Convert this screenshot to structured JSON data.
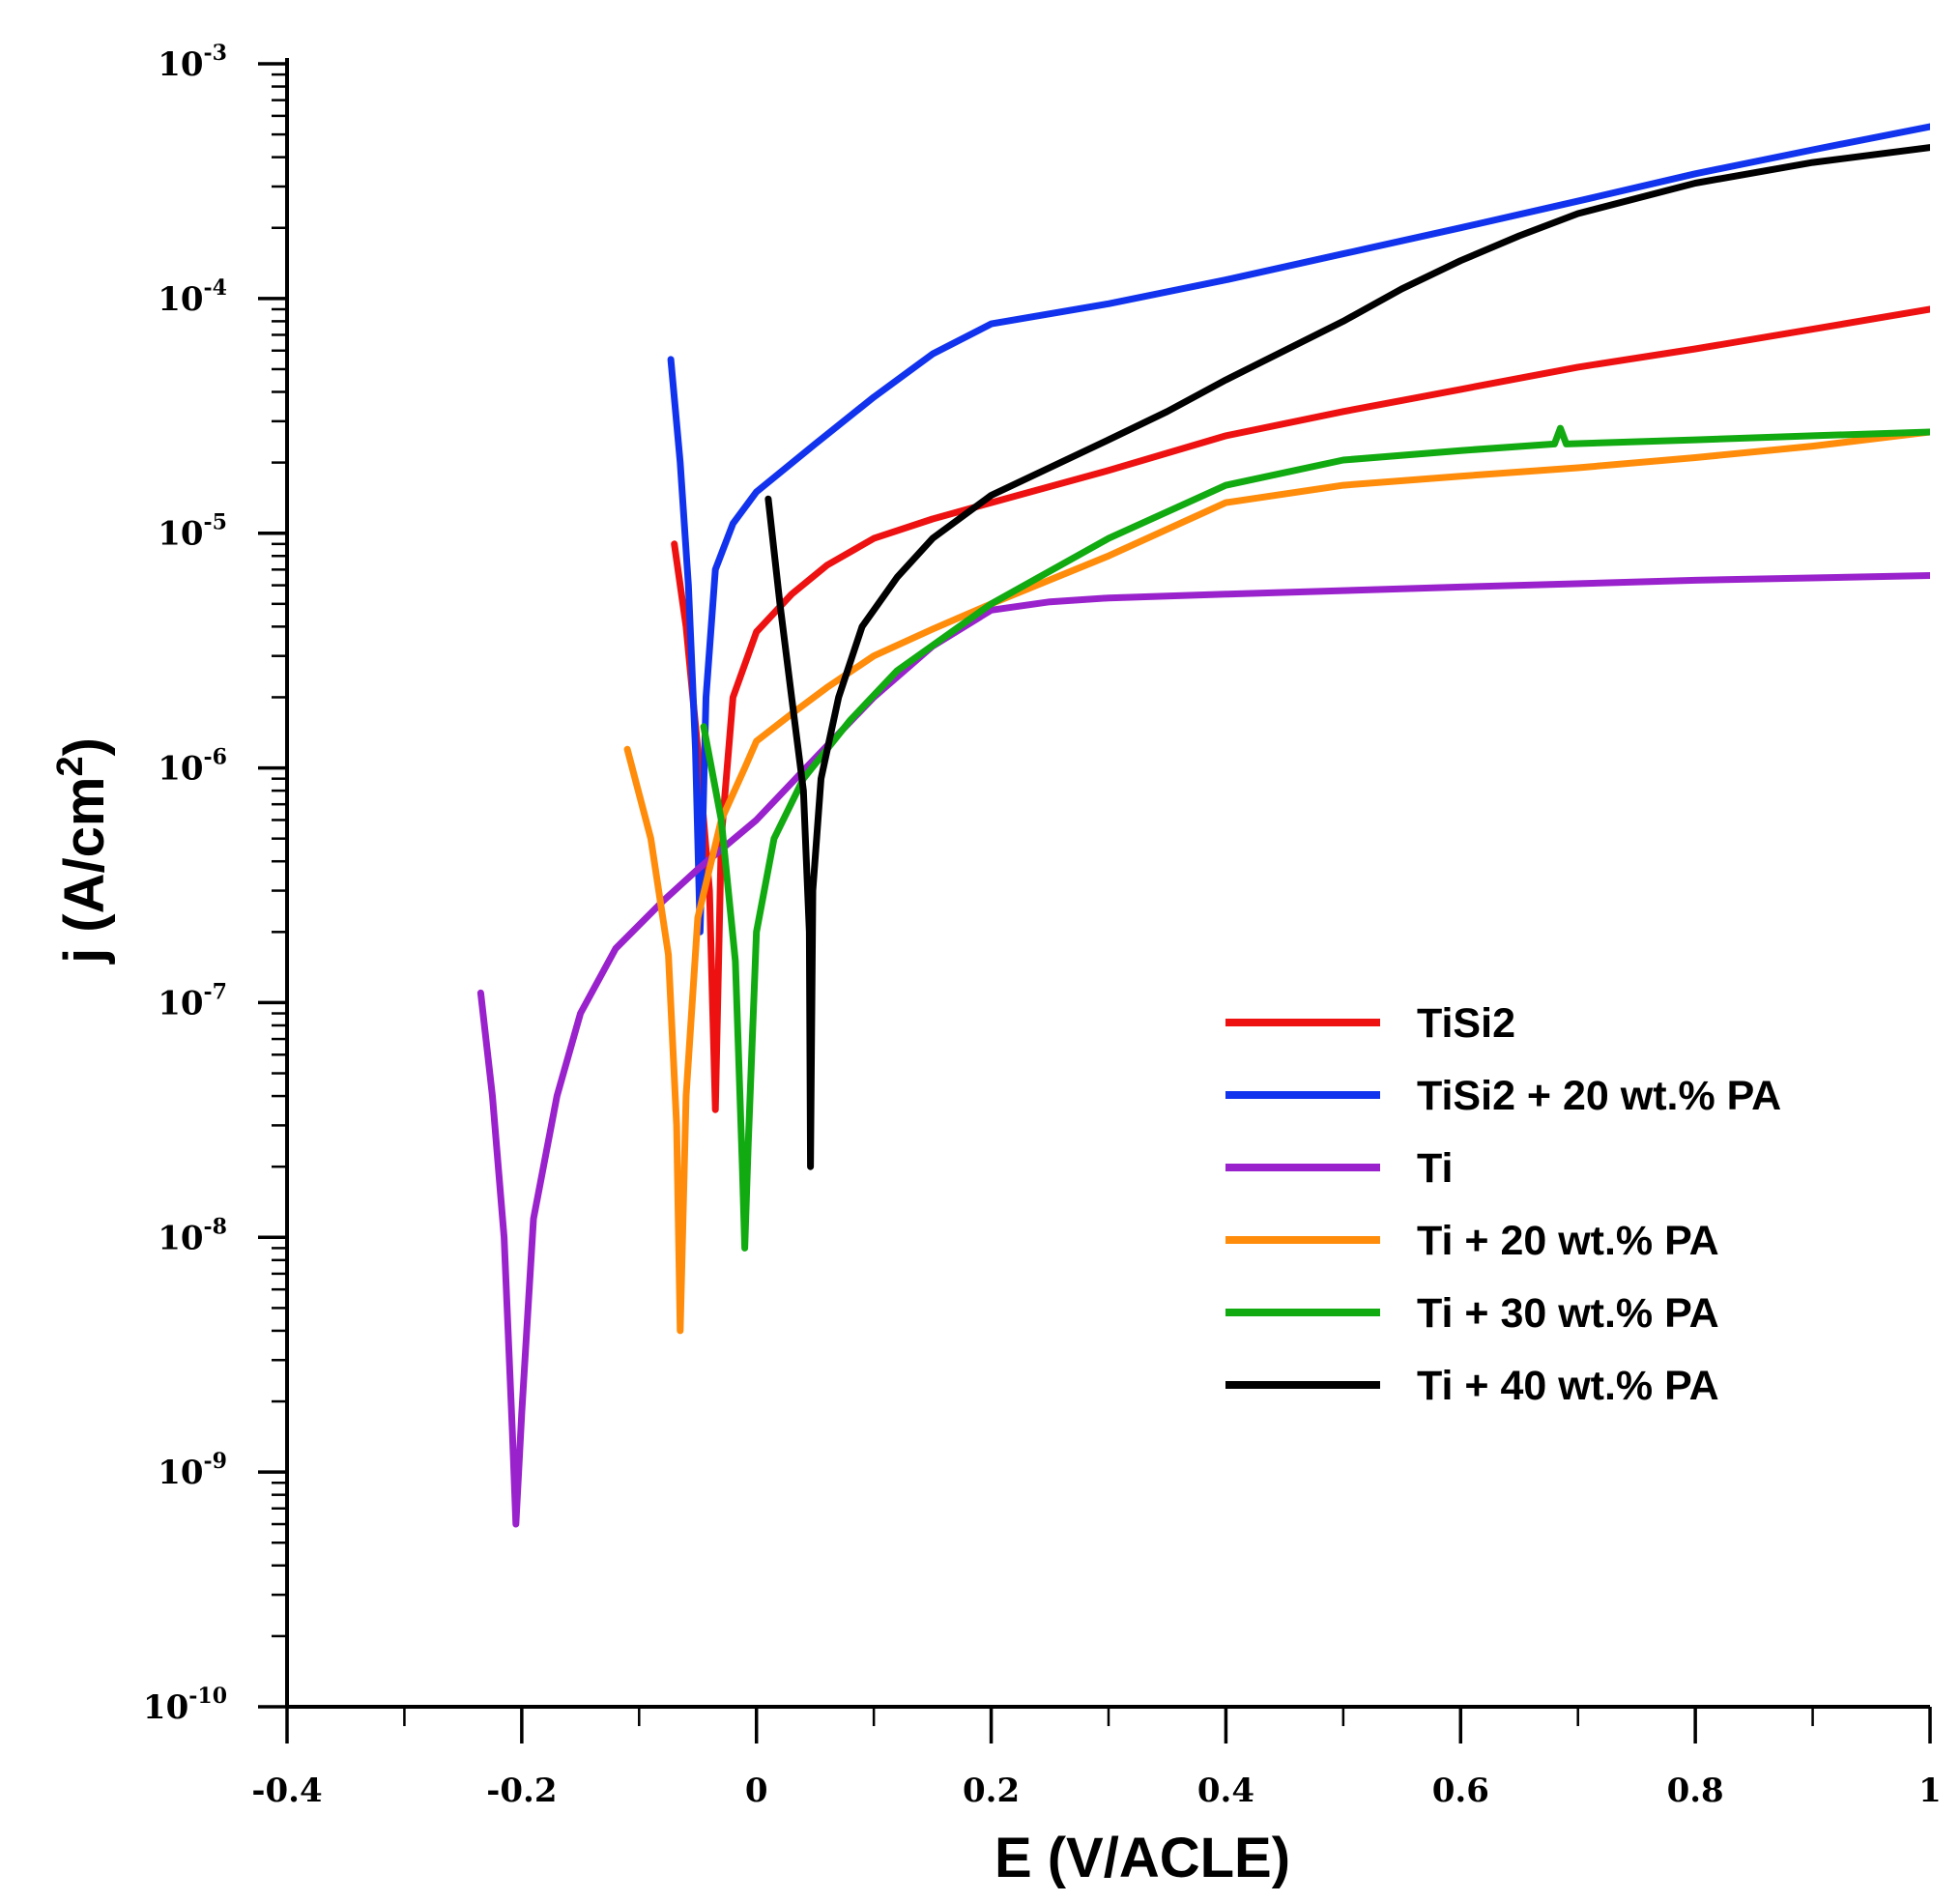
{
  "chart_data": {
    "type": "line",
    "title": "",
    "xlabel": "E (V/ACLE)",
    "ylabel": "j (A/cm²)",
    "ylabel_parts": {
      "main": "j (A/cm",
      "sup": "2",
      "end": ")"
    },
    "yscale": "log",
    "xlim": [
      -0.4,
      1.0
    ],
    "ylim": [
      1e-10,
      0.001
    ],
    "x_ticks": [
      {
        "value": -0.4,
        "label": "-0.4"
      },
      {
        "value": -0.2,
        "label": "-0.2"
      },
      {
        "value": 0.0,
        "label": "0"
      },
      {
        "value": 0.2,
        "label": "0.2"
      },
      {
        "value": 0.4,
        "label": "0.4"
      },
      {
        "value": 0.6,
        "label": "0.6"
      },
      {
        "value": 0.8,
        "label": "0.8"
      },
      {
        "value": 1.0,
        "label": "1"
      }
    ],
    "y_ticks": [
      {
        "exp": -3,
        "base": "10",
        "sup": "-3"
      },
      {
        "exp": -4,
        "base": "10",
        "sup": "-4"
      },
      {
        "exp": -5,
        "base": "10",
        "sup": "-5"
      },
      {
        "exp": -6,
        "base": "10",
        "sup": "-6"
      },
      {
        "exp": -7,
        "base": "10",
        "sup": "-7"
      },
      {
        "exp": -8,
        "base": "10",
        "sup": "-8"
      },
      {
        "exp": -9,
        "base": "10",
        "sup": "-9"
      },
      {
        "exp": -10,
        "base": "10",
        "sup": "-10"
      }
    ],
    "grid": false,
    "legend_position": "bottom-right",
    "series": [
      {
        "name": "TiSi2",
        "color": "#ee1111",
        "points": [
          [
            -0.07,
            9e-06
          ],
          [
            -0.06,
            4e-06
          ],
          [
            -0.05,
            1.2e-06
          ],
          [
            -0.04,
            3e-07
          ],
          [
            -0.035,
            3.5e-08
          ],
          [
            -0.03,
            5e-07
          ],
          [
            -0.02,
            2e-06
          ],
          [
            0.0,
            3.8e-06
          ],
          [
            0.03,
            5.5e-06
          ],
          [
            0.06,
            7.3e-06
          ],
          [
            0.1,
            9.5e-06
          ],
          [
            0.15,
            1.15e-05
          ],
          [
            0.2,
            1.35e-05
          ],
          [
            0.3,
            1.85e-05
          ],
          [
            0.4,
            2.6e-05
          ],
          [
            0.5,
            3.3e-05
          ],
          [
            0.6,
            4.1e-05
          ],
          [
            0.7,
            5.1e-05
          ],
          [
            0.8,
            6.1e-05
          ],
          [
            0.9,
            7.4e-05
          ],
          [
            1.0,
            9e-05
          ]
        ]
      },
      {
        "name": "TiSi2 + 20 wt.% PA",
        "color": "#1133ee",
        "points": [
          [
            -0.073,
            5.5e-05
          ],
          [
            -0.065,
            2e-05
          ],
          [
            -0.058,
            6e-06
          ],
          [
            -0.052,
            1.2e-06
          ],
          [
            -0.048,
            2e-07
          ],
          [
            -0.043,
            2e-06
          ],
          [
            -0.035,
            7e-06
          ],
          [
            -0.02,
            1.1e-05
          ],
          [
            0.0,
            1.5e-05
          ],
          [
            0.05,
            2.4e-05
          ],
          [
            0.1,
            3.8e-05
          ],
          [
            0.15,
            5.8e-05
          ],
          [
            0.2,
            7.8e-05
          ],
          [
            0.3,
            9.5e-05
          ],
          [
            0.4,
            0.00012
          ],
          [
            0.5,
            0.000155
          ],
          [
            0.6,
            0.0002
          ],
          [
            0.7,
            0.00026
          ],
          [
            0.8,
            0.00034
          ],
          [
            0.9,
            0.00043
          ],
          [
            1.0,
            0.00054
          ]
        ]
      },
      {
        "name": "Ti",
        "color": "#9922cc",
        "points": [
          [
            -0.235,
            1.1e-07
          ],
          [
            -0.225,
            4e-08
          ],
          [
            -0.215,
            1e-08
          ],
          [
            -0.208,
            1.5e-09
          ],
          [
            -0.205,
            6e-10
          ],
          [
            -0.2,
            1.8e-09
          ],
          [
            -0.19,
            1.2e-08
          ],
          [
            -0.17,
            4e-08
          ],
          [
            -0.15,
            9e-08
          ],
          [
            -0.12,
            1.7e-07
          ],
          [
            -0.08,
            2.7e-07
          ],
          [
            -0.05,
            3.7e-07
          ],
          [
            0.0,
            6e-07
          ],
          [
            0.05,
            1.1e-06
          ],
          [
            0.1,
            2e-06
          ],
          [
            0.15,
            3.3e-06
          ],
          [
            0.2,
            4.7e-06
          ],
          [
            0.25,
            5.1e-06
          ],
          [
            0.3,
            5.3e-06
          ],
          [
            0.4,
            5.5e-06
          ],
          [
            0.6,
            5.9e-06
          ],
          [
            0.8,
            6.3e-06
          ],
          [
            1.0,
            6.6e-06
          ]
        ]
      },
      {
        "name": "Ti + 20 wt.% PA",
        "color": "#ff8c0a",
        "points": [
          [
            -0.11,
            1.2e-06
          ],
          [
            -0.09,
            5e-07
          ],
          [
            -0.075,
            1.6e-07
          ],
          [
            -0.068,
            3e-08
          ],
          [
            -0.065,
            4e-09
          ],
          [
            -0.06,
            4e-08
          ],
          [
            -0.05,
            2.3e-07
          ],
          [
            -0.03,
            6e-07
          ],
          [
            -0.01,
            1e-06
          ],
          [
            0.0,
            1.3e-06
          ],
          [
            0.03,
            1.7e-06
          ],
          [
            0.06,
            2.2e-06
          ],
          [
            0.1,
            3e-06
          ],
          [
            0.15,
            3.9e-06
          ],
          [
            0.2,
            5e-06
          ],
          [
            0.3,
            8e-06
          ],
          [
            0.4,
            1.35e-05
          ],
          [
            0.5,
            1.6e-05
          ],
          [
            0.6,
            1.75e-05
          ],
          [
            0.7,
            1.9e-05
          ],
          [
            0.8,
            2.1e-05
          ],
          [
            0.9,
            2.35e-05
          ],
          [
            1.0,
            2.7e-05
          ]
        ]
      },
      {
        "name": "Ti + 30 wt.% PA",
        "color": "#11aa11",
        "points": [
          [
            -0.045,
            1.5e-06
          ],
          [
            -0.03,
            6e-07
          ],
          [
            -0.018,
            1.5e-07
          ],
          [
            -0.012,
            2e-08
          ],
          [
            -0.01,
            9e-09
          ],
          [
            -0.007,
            2.5e-08
          ],
          [
            0.0,
            2e-07
          ],
          [
            0.015,
            5e-07
          ],
          [
            0.04,
            9e-07
          ],
          [
            0.08,
            1.6e-06
          ],
          [
            0.12,
            2.6e-06
          ],
          [
            0.2,
            5e-06
          ],
          [
            0.3,
            9.5e-06
          ],
          [
            0.4,
            1.6e-05
          ],
          [
            0.5,
            2.05e-05
          ],
          [
            0.6,
            2.25e-05
          ],
          [
            0.68,
            2.4e-05
          ],
          [
            0.685,
            2.8e-05
          ],
          [
            0.69,
            2.4e-05
          ],
          [
            0.8,
            2.5e-05
          ],
          [
            0.9,
            2.6e-05
          ],
          [
            1.0,
            2.7e-05
          ]
        ]
      },
      {
        "name": "Ti + 40 wt.% PA",
        "color": "#000000",
        "points": [
          [
            0.01,
            1.4e-05
          ],
          [
            0.02,
            5e-06
          ],
          [
            0.03,
            2e-06
          ],
          [
            0.04,
            8e-07
          ],
          [
            0.045,
            2e-07
          ],
          [
            0.046,
            2e-08
          ],
          [
            0.048,
            3e-07
          ],
          [
            0.055,
            9e-07
          ],
          [
            0.07,
            2e-06
          ],
          [
            0.09,
            4e-06
          ],
          [
            0.12,
            6.5e-06
          ],
          [
            0.15,
            9.5e-06
          ],
          [
            0.2,
            1.45e-05
          ],
          [
            0.3,
            2.5e-05
          ],
          [
            0.35,
            3.3e-05
          ],
          [
            0.4,
            4.5e-05
          ],
          [
            0.45,
            6e-05
          ],
          [
            0.5,
            8e-05
          ],
          [
            0.55,
            0.00011
          ],
          [
            0.6,
            0.000145
          ],
          [
            0.65,
            0.000185
          ],
          [
            0.7,
            0.00023
          ],
          [
            0.8,
            0.00031
          ],
          [
            0.9,
            0.00038
          ],
          [
            1.0,
            0.00044
          ]
        ]
      }
    ]
  }
}
